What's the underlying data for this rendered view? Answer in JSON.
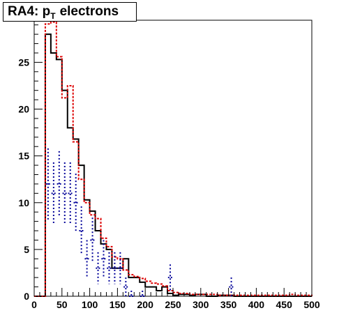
{
  "title": {
    "main": "RA4: p",
    "subscript": "T",
    "rest": "electrons"
  },
  "chart_data": {
    "type": "histogram",
    "title": "RA4: p_T electrons",
    "xlabel": "",
    "ylabel": "",
    "xlim": [
      0,
      500
    ],
    "ylim": [
      0,
      29.5
    ],
    "x_ticks": [
      "0",
      "50",
      "100",
      "150",
      "200",
      "250",
      "300",
      "350",
      "400",
      "450",
      "500"
    ],
    "y_ticks": [
      "0",
      "5",
      "10",
      "15",
      "20",
      "25"
    ],
    "grid": false,
    "legend": "none",
    "bin_edges": [
      0,
      10,
      20,
      30,
      40,
      50,
      60,
      70,
      80,
      90,
      100,
      110,
      120,
      130,
      140,
      150,
      160,
      170,
      180,
      190,
      200,
      210,
      220,
      230,
      240,
      250,
      260,
      270,
      280,
      290,
      300,
      310,
      320,
      330,
      340,
      350,
      360,
      370,
      380,
      390,
      400,
      410,
      420,
      430,
      440,
      450,
      460,
      470,
      480,
      490,
      500
    ],
    "series": [
      {
        "style": "solid",
        "color": "#000000",
        "values": [
          0,
          0,
          28,
          26,
          25.3,
          22,
          18,
          16.8,
          14,
          10.3,
          9.1,
          7,
          5.6,
          5,
          3,
          3,
          4,
          2,
          2,
          1.5,
          1,
          1,
          0.6,
          1,
          0.3,
          0.1,
          0.2,
          0.2,
          0.1,
          0.2,
          0.2,
          0,
          0,
          0.1,
          0.1,
          0.1,
          0,
          0,
          0,
          0,
          0,
          0,
          0,
          0,
          0,
          0,
          0,
          0,
          0,
          0
        ]
      },
      {
        "style": "dashed",
        "color": "#dd0000",
        "values": [
          0,
          0,
          29.1,
          29.3,
          25.6,
          21.2,
          22.5,
          16.5,
          12.5,
          10,
          8.7,
          8.3,
          6.2,
          5.3,
          4.2,
          4,
          2.8,
          2.3,
          2.1,
          1.9,
          1.6,
          1.4,
          1.3,
          1.1,
          0.6,
          0.4,
          0.3,
          0.3,
          0.2,
          0.2,
          0.2,
          0.2,
          0.2,
          0.1,
          0.1,
          0.1,
          0.1,
          0.1,
          0.1,
          0.1,
          0.1,
          0.1,
          0.1,
          0.1,
          0.1,
          0.1,
          0.2,
          0.1,
          0.1,
          0.1
        ]
      },
      {
        "style": "dotted",
        "color": "#000099",
        "points": [
          {
            "x": 25,
            "y": 12,
            "err": 3.8
          },
          {
            "x": 35,
            "y": 11,
            "err": 3.3
          },
          {
            "x": 45,
            "y": 12,
            "err": 3.5
          },
          {
            "x": 55,
            "y": 11,
            "err": 3.3
          },
          {
            "x": 65,
            "y": 11,
            "err": 3.3
          },
          {
            "x": 75,
            "y": 10,
            "err": 3.1
          },
          {
            "x": 85,
            "y": 7,
            "err": 2.6
          },
          {
            "x": 95,
            "y": 4,
            "err": 2.0
          },
          {
            "x": 105,
            "y": 6,
            "err": 2.4
          },
          {
            "x": 115,
            "y": 3,
            "err": 1.7
          },
          {
            "x": 125,
            "y": 4,
            "err": 2.0
          },
          {
            "x": 135,
            "y": 3,
            "err": 1.7
          },
          {
            "x": 145,
            "y": 3,
            "err": 1.7
          },
          {
            "x": 155,
            "y": 3,
            "err": 1.7
          },
          {
            "x": 165,
            "y": 1,
            "err": 1.0
          },
          {
            "x": 175,
            "y": 0,
            "err": 0.6
          },
          {
            "x": 195,
            "y": 0,
            "err": 0.6
          },
          {
            "x": 245,
            "y": 2,
            "err": 1.4
          },
          {
            "x": 355,
            "y": 1,
            "err": 1.0
          }
        ]
      }
    ]
  }
}
